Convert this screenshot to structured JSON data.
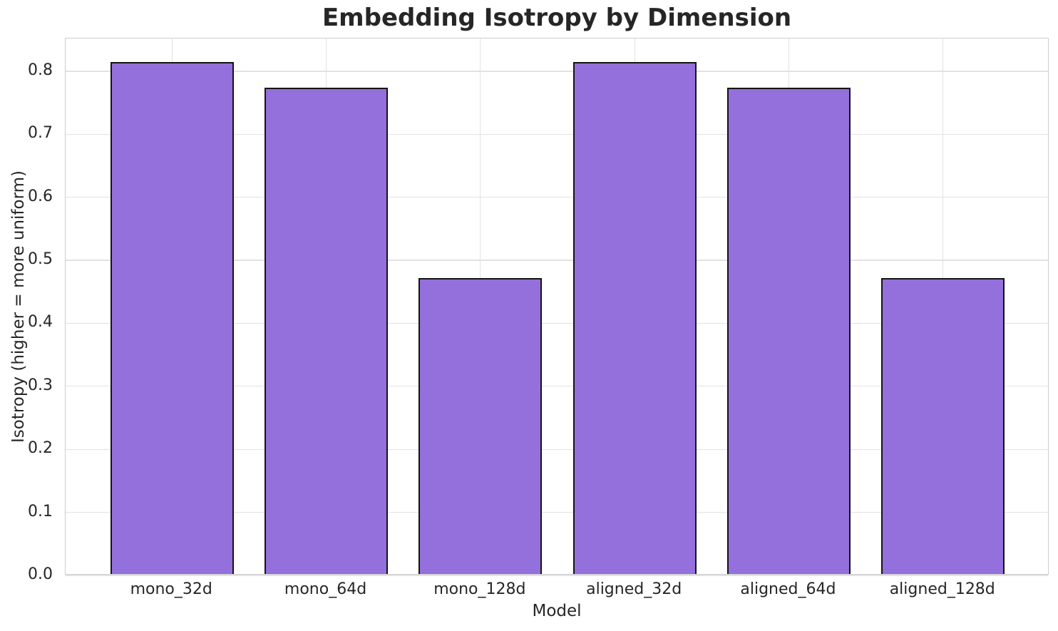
{
  "chart_data": {
    "type": "bar",
    "title": "Embedding Isotropy by Dimension",
    "xlabel": "Model",
    "ylabel": "Isotropy (higher = more uniform)",
    "categories": [
      "mono_32d",
      "mono_64d",
      "mono_128d",
      "aligned_32d",
      "aligned_64d",
      "aligned_128d"
    ],
    "values": [
      0.812,
      0.772,
      0.47,
      0.812,
      0.772,
      0.47
    ],
    "yticks": [
      0.0,
      0.1,
      0.2,
      0.3,
      0.4,
      0.5,
      0.6,
      0.7,
      0.8
    ],
    "ytick_labels": [
      "0.0",
      "0.1",
      "0.2",
      "0.3",
      "0.4",
      "0.5",
      "0.6",
      "0.7",
      "0.8"
    ],
    "ylim": [
      0,
      0.852
    ],
    "grid": true,
    "grid_axes": "both",
    "legend": "none",
    "colors": {
      "bar_fill": "#9370db",
      "bar_edge": "#141414",
      "grid": "#e2e2e2",
      "spine": "#cdcdcd",
      "text": "#262626",
      "background": "#ffffff"
    }
  }
}
